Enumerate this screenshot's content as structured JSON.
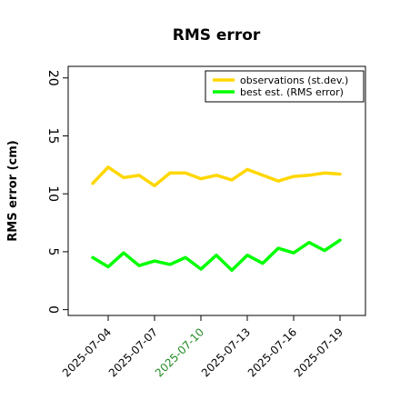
{
  "chart_data": {
    "type": "line",
    "title": "RMS error",
    "xlabel": "",
    "ylabel": "RMS error (cm)",
    "x": [
      "2025-07-03",
      "2025-07-04",
      "2025-07-05",
      "2025-07-06",
      "2025-07-07",
      "2025-07-08",
      "2025-07-09",
      "2025-07-10",
      "2025-07-11",
      "2025-07-12",
      "2025-07-13",
      "2025-07-14",
      "2025-07-15",
      "2025-07-16",
      "2025-07-17",
      "2025-07-18",
      "2025-07-19"
    ],
    "xtick_labels": [
      "2025-07-04",
      "2025-07-07",
      "2025-07-10",
      "2025-07-13",
      "2025-07-16",
      "2025-07-19"
    ],
    "xtick_highlight": "2025-07-10",
    "xtick_highlight_color": "#228b22",
    "ylim": [
      -0.5,
      21
    ],
    "yticks": [
      0,
      5,
      10,
      15,
      20
    ],
    "grid": false,
    "legend_position": "top-right",
    "series": [
      {
        "name": "observations (st.dev.)",
        "color": "#ffd700",
        "values": [
          10.9,
          12.3,
          11.4,
          11.6,
          10.7,
          11.8,
          11.8,
          11.3,
          11.6,
          11.2,
          12.1,
          11.6,
          11.1,
          11.5,
          11.6,
          11.8,
          11.7
        ]
      },
      {
        "name": "best est. (RMS error)",
        "color": "#00ff00",
        "values": [
          4.5,
          3.7,
          4.9,
          3.8,
          4.2,
          3.9,
          4.5,
          3.5,
          4.7,
          3.4,
          4.7,
          4.0,
          5.3,
          4.9,
          5.8,
          5.1,
          6.0
        ]
      }
    ]
  }
}
